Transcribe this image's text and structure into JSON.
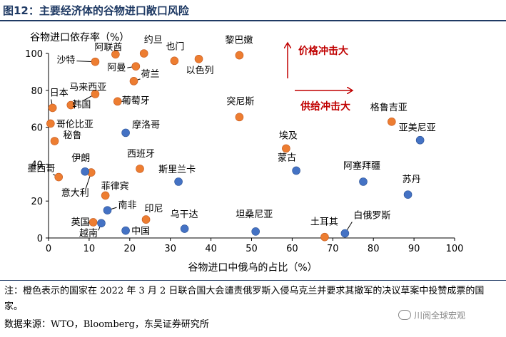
{
  "figure_title": "图12：主要经济体的谷物进口敞口风险",
  "note": "注：橙色表示的国家在 2022 年 3 月 2 日联合国大会谴责俄罗斯入侵乌克兰并要求其撤军的决议草案中投赞成票的国家。",
  "source": "数据来源：WTO，Bloomberg，东吴证券研究所",
  "watermark": "川阅全球宏观",
  "colors": {
    "orange": "#ed7d31",
    "blue": "#4472c4",
    "arrow_red": "#c00000",
    "title_blue": "#1f3a64"
  },
  "chart_data": {
    "type": "scatter",
    "xlabel": "谷物进口中俄乌的占比（%）",
    "ylabel": "谷物进口依存率（%）",
    "xlim": [
      0,
      100
    ],
    "ylim": [
      0,
      100
    ],
    "xticks": [
      0,
      10,
      20,
      30,
      40,
      50,
      60,
      70,
      80,
      90,
      100
    ],
    "yticks": [
      0,
      20,
      40,
      60,
      80,
      100
    ],
    "grid": false,
    "annotations": [
      {
        "text": "价格冲击大",
        "direction": "up"
      },
      {
        "text": "供给冲击大",
        "direction": "right"
      }
    ],
    "points": [
      {
        "name": "约旦",
        "x": 23.5,
        "y": 100,
        "group": "orange"
      },
      {
        "name": "沙特",
        "x": 11.5,
        "y": 95.5,
        "group": "orange"
      },
      {
        "name": "阿联酋",
        "x": 16.5,
        "y": 99.5,
        "group": "orange"
      },
      {
        "name": "阿曼",
        "x": 21.5,
        "y": 93,
        "group": "orange"
      },
      {
        "name": "荷兰",
        "x": 21,
        "y": 85,
        "group": "orange"
      },
      {
        "name": "也门",
        "x": 31,
        "y": 96,
        "group": "orange"
      },
      {
        "name": "以色列",
        "x": 37,
        "y": 97,
        "group": "orange"
      },
      {
        "name": "黎巴嫩",
        "x": 47,
        "y": 99,
        "group": "orange"
      },
      {
        "name": "日本",
        "x": 1,
        "y": 70.5,
        "group": "orange"
      },
      {
        "name": "马来西亚",
        "x": 5.5,
        "y": 72,
        "group": "orange"
      },
      {
        "name": "韩国",
        "x": 11.5,
        "y": 78,
        "group": "orange"
      },
      {
        "name": "葡萄牙",
        "x": 17,
        "y": 74,
        "group": "orange"
      },
      {
        "name": "突尼斯",
        "x": 47,
        "y": 65.5,
        "group": "orange"
      },
      {
        "name": "哥伦比亚",
        "x": 0.5,
        "y": 62,
        "group": "orange"
      },
      {
        "name": "秘鲁",
        "x": 1.5,
        "y": 52.5,
        "group": "orange"
      },
      {
        "name": "埃及",
        "x": 58.5,
        "y": 48.5,
        "group": "orange"
      },
      {
        "name": "西班牙",
        "x": 22.5,
        "y": 37.5,
        "group": "orange"
      },
      {
        "name": "墨西哥",
        "x": 2.5,
        "y": 33,
        "group": "orange"
      },
      {
        "name": "意大利",
        "x": 10.5,
        "y": 35.5,
        "group": "orange"
      },
      {
        "name": "菲律宾",
        "x": 14,
        "y": 23,
        "group": "orange"
      },
      {
        "name": "印尼",
        "x": 24,
        "y": 10,
        "group": "orange"
      },
      {
        "name": "英国",
        "x": 11,
        "y": 8.5,
        "group": "orange"
      },
      {
        "name": "土耳其",
        "x": 68,
        "y": 0.5,
        "group": "orange"
      },
      {
        "name": "格鲁吉亚",
        "x": 84.5,
        "y": 63,
        "group": "orange"
      },
      {
        "name": "亚美尼亚",
        "x": 91.5,
        "y": 53,
        "group": "blue"
      },
      {
        "name": "摩洛哥",
        "x": 19,
        "y": 57,
        "group": "blue"
      },
      {
        "name": "蒙古",
        "x": 61,
        "y": 36.5,
        "group": "blue"
      },
      {
        "name": "伊朗",
        "x": 9,
        "y": 36,
        "group": "blue"
      },
      {
        "name": "斯里兰卡",
        "x": 32,
        "y": 30.5,
        "group": "blue"
      },
      {
        "name": "阿塞拜疆",
        "x": 77.5,
        "y": 30.5,
        "group": "blue"
      },
      {
        "name": "苏丹",
        "x": 88.5,
        "y": 23.5,
        "group": "blue"
      },
      {
        "name": "南非",
        "x": 14.5,
        "y": 15,
        "group": "blue"
      },
      {
        "name": "越南",
        "x": 13,
        "y": 8,
        "group": "blue"
      },
      {
        "name": "中国",
        "x": 19,
        "y": 4,
        "group": "blue"
      },
      {
        "name": "乌干达",
        "x": 33.5,
        "y": 5,
        "group": "blue"
      },
      {
        "name": "坦桑尼亚",
        "x": 51,
        "y": 3.5,
        "group": "blue"
      },
      {
        "name": "白俄罗斯",
        "x": 73,
        "y": 2.5,
        "group": "blue"
      }
    ]
  }
}
